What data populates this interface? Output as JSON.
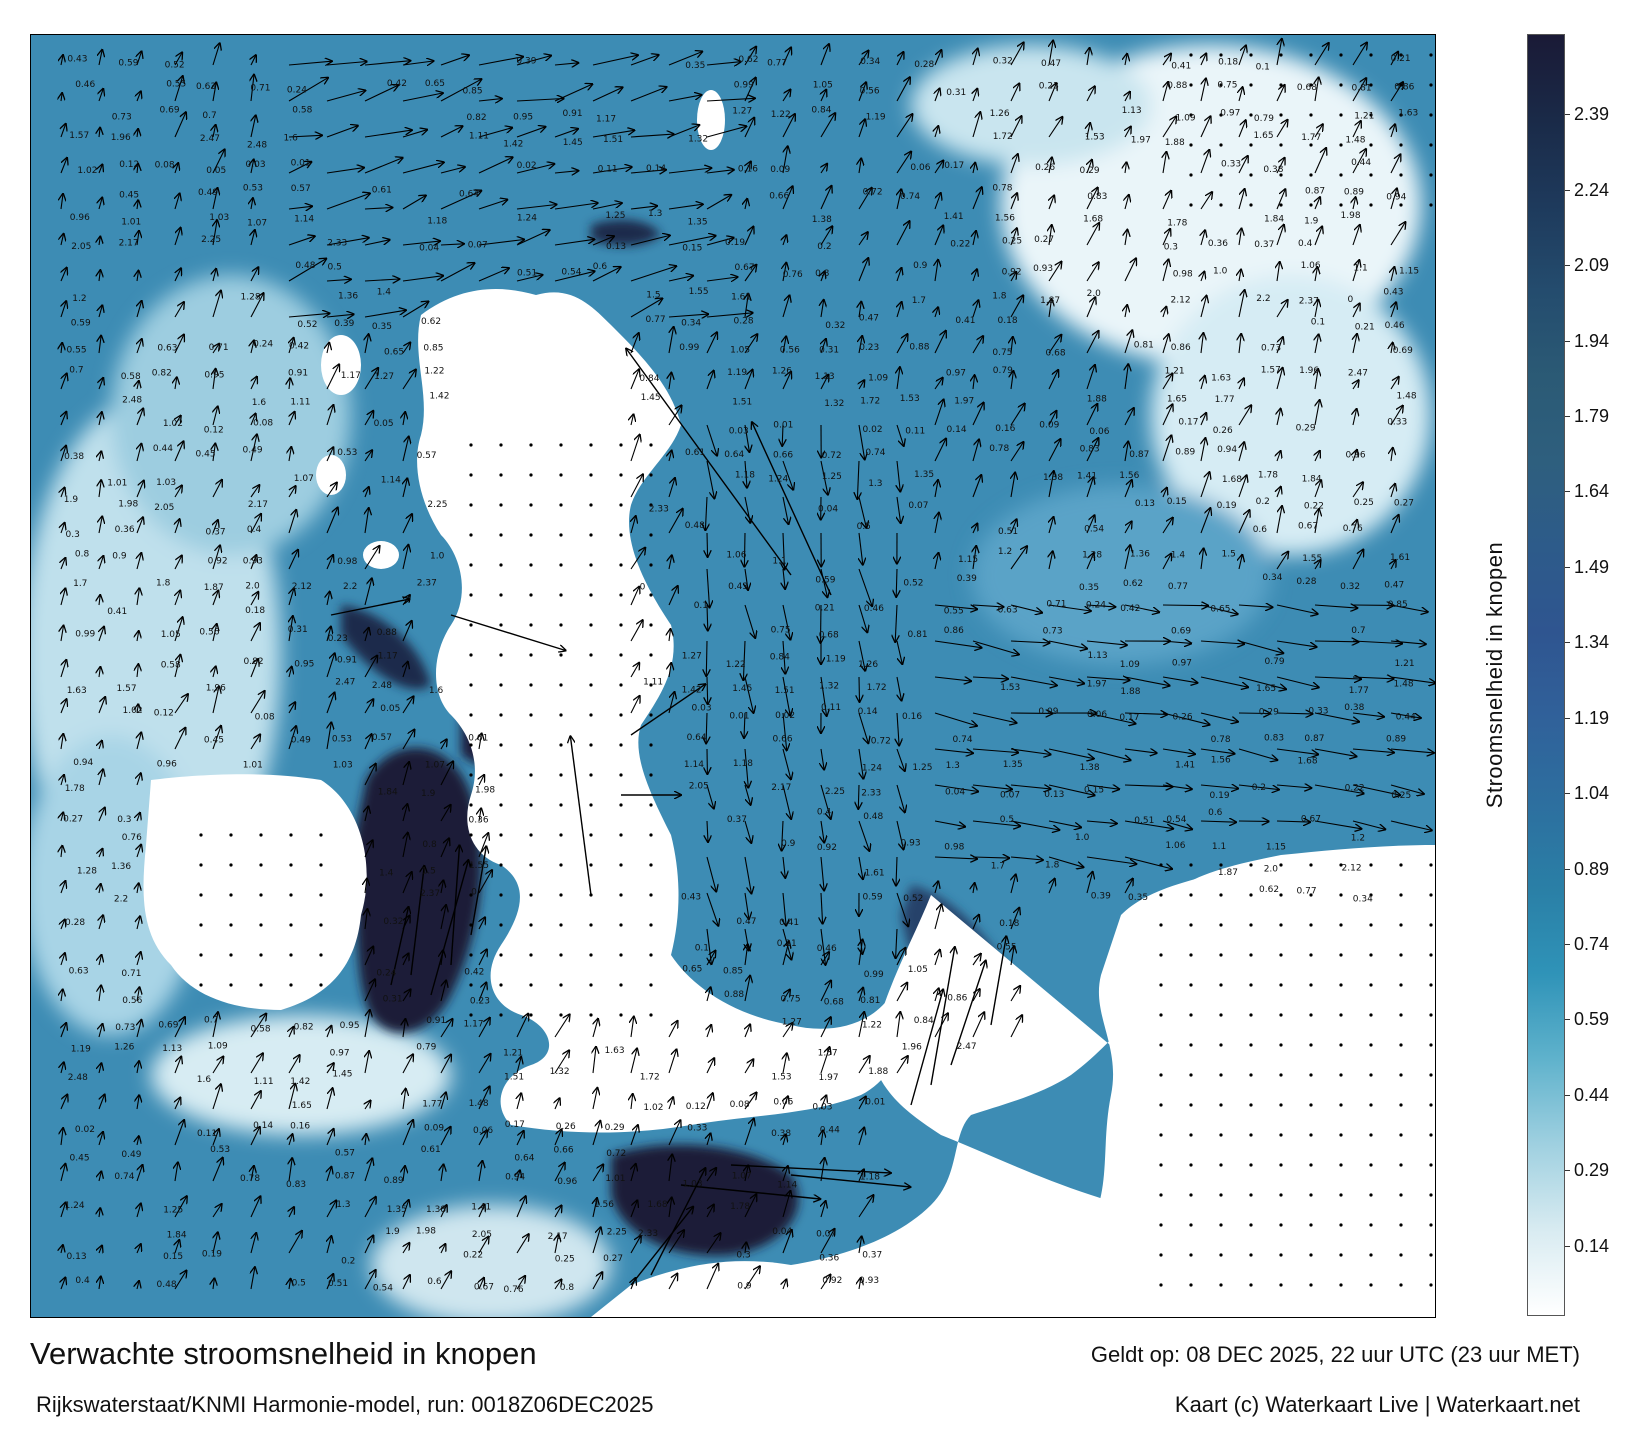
{
  "title": "Verwachte stroomsnelheid in knopen",
  "subtitle": "Rijkswaterstaat/KNMI Harmonie-model, run: 0018Z06DEC2025",
  "valid_time": "Geldt op: 08 DEC 2025, 22 uur UTC (23 uur MET)",
  "credit": "Kaart (c) Waterkaart Live | Waterkaart.net",
  "colorbar": {
    "label": "Stroomsnelheid in knopen",
    "ticks": [
      "2.39",
      "2.24",
      "2.09",
      "1.94",
      "1.79",
      "1.64",
      "1.49",
      "1.34",
      "1.19",
      "1.04",
      "0.89",
      "0.74",
      "0.59",
      "0.44",
      "0.29",
      "0.14"
    ],
    "tick_values": [
      2.39,
      2.24,
      2.09,
      1.94,
      1.79,
      1.64,
      1.49,
      1.34,
      1.19,
      1.04,
      0.89,
      0.74,
      0.59,
      0.44,
      0.29,
      0.14
    ],
    "range": [
      0.0,
      2.55
    ],
    "colors": [
      "#ffffff",
      "#d8ebf1",
      "#9fd0e0",
      "#5fb2cc",
      "#2f93b8",
      "#2a7fa6",
      "#2d6f9f",
      "#30619a",
      "#2f5590",
      "#2d5b8a",
      "#2e5f7e",
      "#2b5a75",
      "#244c6e",
      "#1e3a5c",
      "#1a2a48",
      "#1a1a36"
    ]
  },
  "map": {
    "land_color": "#ffffff",
    "sea_mid_color": "#3d8cb4",
    "sea_deep_color": "#1c1c38",
    "arrow_color": "#000000",
    "labels": [
      {
        "text": "0.43",
        "v": 0.43
      },
      {
        "text": "0.59",
        "v": 0.59
      },
      {
        "text": "0.52",
        "v": 0.52
      },
      {
        "text": "0.39",
        "v": 0.39
      },
      {
        "text": "0.35",
        "v": 0.35
      },
      {
        "text": "0.62",
        "v": 0.62
      },
      {
        "text": "0.77",
        "v": 0.77
      },
      {
        "text": "0.34",
        "v": 0.34
      },
      {
        "text": "0.28",
        "v": 0.28
      },
      {
        "text": "0.32",
        "v": 0.32
      },
      {
        "text": "0.47",
        "v": 0.47
      },
      {
        "text": "0.41",
        "v": 0.41
      },
      {
        "text": "0.18",
        "v": 0.18
      },
      {
        "text": "0.1",
        "v": 0.1
      },
      {
        "text": "0.21",
        "v": 0.21
      },
      {
        "text": "0.46",
        "v": 0.46
      },
      {
        "text": "0.55",
        "v": 0.55
      },
      {
        "text": "0.63",
        "v": 0.63
      },
      {
        "text": "0.71",
        "v": 0.71
      },
      {
        "text": "0.24",
        "v": 0.24
      },
      {
        "text": "0.42",
        "v": 0.42
      },
      {
        "text": "0.65",
        "v": 0.65
      },
      {
        "text": "0.85",
        "v": 0.85
      },
      {
        "text": "0.99",
        "v": 0.99
      },
      {
        "text": "1.05",
        "v": 1.05
      },
      {
        "text": "0.56",
        "v": 0.56
      },
      {
        "text": "0.31",
        "v": 0.31
      },
      {
        "text": "0.23",
        "v": 0.23
      },
      {
        "text": "0.88",
        "v": 0.88
      },
      {
        "text": "0.75",
        "v": 0.75
      },
      {
        "text": "0.68",
        "v": 0.68
      },
      {
        "text": "0.81",
        "v": 0.81
      },
      {
        "text": "0.86",
        "v": 0.86
      },
      {
        "text": "0.73",
        "v": 0.73
      },
      {
        "text": "0.69",
        "v": 0.69
      },
      {
        "text": "0.7",
        "v": 0.7
      },
      {
        "text": "0.58",
        "v": 0.58
      },
      {
        "text": "0.82",
        "v": 0.82
      },
      {
        "text": "0.95",
        "v": 0.95
      },
      {
        "text": "0.91",
        "v": 0.91
      },
      {
        "text": "1.17",
        "v": 1.17
      },
      {
        "text": "1.27",
        "v": 1.27
      },
      {
        "text": "1.22",
        "v": 1.22
      },
      {
        "text": "0.84",
        "v": 0.84
      },
      {
        "text": "1.19",
        "v": 1.19
      },
      {
        "text": "1.26",
        "v": 1.26
      },
      {
        "text": "1.13",
        "v": 1.13
      },
      {
        "text": "1.09",
        "v": 1.09
      },
      {
        "text": "0.97",
        "v": 0.97
      },
      {
        "text": "0.79",
        "v": 0.79
      },
      {
        "text": "1.21",
        "v": 1.21
      },
      {
        "text": "1.63",
        "v": 1.63
      },
      {
        "text": "1.57",
        "v": 1.57
      },
      {
        "text": "1.96",
        "v": 1.96
      },
      {
        "text": "2.47",
        "v": 2.47
      },
      {
        "text": "2.48",
        "v": 2.48
      },
      {
        "text": "1.6",
        "v": 1.6
      },
      {
        "text": "1.11",
        "v": 1.11
      },
      {
        "text": "1.42",
        "v": 1.42
      },
      {
        "text": "1.45",
        "v": 1.45
      },
      {
        "text": "1.51",
        "v": 1.51
      },
      {
        "text": "1.32",
        "v": 1.32
      },
      {
        "text": "1.72",
        "v": 1.72
      },
      {
        "text": "1.53",
        "v": 1.53
      },
      {
        "text": "1.97",
        "v": 1.97
      },
      {
        "text": "1.88",
        "v": 1.88
      },
      {
        "text": "1.65",
        "v": 1.65
      },
      {
        "text": "1.77",
        "v": 1.77
      },
      {
        "text": "1.48",
        "v": 1.48
      },
      {
        "text": "1.02",
        "v": 1.02
      },
      {
        "text": "0.12",
        "v": 0.12
      },
      {
        "text": "0.08",
        "v": 0.08
      },
      {
        "text": "0.05",
        "v": 0.05
      },
      {
        "text": "0.03",
        "v": 0.03
      },
      {
        "text": "0.01",
        "v": 0.01
      },
      {
        "text": "0.02",
        "v": 0.02
      },
      {
        "text": "0.11",
        "v": 0.11
      },
      {
        "text": "0.14",
        "v": 0.14
      },
      {
        "text": "0.16",
        "v": 0.16
      },
      {
        "text": "0.09",
        "v": 0.09
      },
      {
        "text": "0.06",
        "v": 0.06
      },
      {
        "text": "0.17",
        "v": 0.17
      },
      {
        "text": "0.26",
        "v": 0.26
      },
      {
        "text": "0.29",
        "v": 0.29
      },
      {
        "text": "0.33",
        "v": 0.33
      },
      {
        "text": "0.38",
        "v": 0.38
      },
      {
        "text": "0.44",
        "v": 0.44
      },
      {
        "text": "0.45",
        "v": 0.45
      },
      {
        "text": "0.49",
        "v": 0.49
      },
      {
        "text": "0.53",
        "v": 0.53
      },
      {
        "text": "0.57",
        "v": 0.57
      },
      {
        "text": "0.61",
        "v": 0.61
      },
      {
        "text": "0.64",
        "v": 0.64
      },
      {
        "text": "0.66",
        "v": 0.66
      },
      {
        "text": "0.72",
        "v": 0.72
      },
      {
        "text": "0.74",
        "v": 0.74
      },
      {
        "text": "0.78",
        "v": 0.78
      },
      {
        "text": "0.83",
        "v": 0.83
      },
      {
        "text": "0.87",
        "v": 0.87
      },
      {
        "text": "0.89",
        "v": 0.89
      },
      {
        "text": "0.94",
        "v": 0.94
      },
      {
        "text": "0.96",
        "v": 0.96
      },
      {
        "text": "1.01",
        "v": 1.01
      },
      {
        "text": "1.03",
        "v": 1.03
      },
      {
        "text": "1.07",
        "v": 1.07
      },
      {
        "text": "1.14",
        "v": 1.14
      },
      {
        "text": "1.18",
        "v": 1.18
      },
      {
        "text": "1.24",
        "v": 1.24
      },
      {
        "text": "1.25",
        "v": 1.25
      },
      {
        "text": "1.3",
        "v": 1.3
      },
      {
        "text": "1.35",
        "v": 1.35
      },
      {
        "text": "1.38",
        "v": 1.38
      },
      {
        "text": "1.41",
        "v": 1.41
      },
      {
        "text": "1.56",
        "v": 1.56
      },
      {
        "text": "1.68",
        "v": 1.68
      },
      {
        "text": "1.78",
        "v": 1.78
      },
      {
        "text": "1.84",
        "v": 1.84
      },
      {
        "text": "1.9",
        "v": 1.9
      },
      {
        "text": "1.98",
        "v": 1.98
      },
      {
        "text": "2.05",
        "v": 2.05
      },
      {
        "text": "2.17",
        "v": 2.17
      },
      {
        "text": "2.25",
        "v": 2.25
      },
      {
        "text": "2.33",
        "v": 2.33
      },
      {
        "text": "0.04",
        "v": 0.04
      },
      {
        "text": "0.07",
        "v": 0.07
      },
      {
        "text": "0.13",
        "v": 0.13
      },
      {
        "text": "0.15",
        "v": 0.15
      },
      {
        "text": "0.19",
        "v": 0.19
      },
      {
        "text": "0.2",
        "v": 0.2
      },
      {
        "text": "0.22",
        "v": 0.22
      },
      {
        "text": "0.25",
        "v": 0.25
      },
      {
        "text": "0.27",
        "v": 0.27
      },
      {
        "text": "0.3",
        "v": 0.3
      },
      {
        "text": "0.36",
        "v": 0.36
      },
      {
        "text": "0.37",
        "v": 0.37
      },
      {
        "text": "0.4",
        "v": 0.4
      },
      {
        "text": "0.48",
        "v": 0.48
      },
      {
        "text": "0.5",
        "v": 0.5
      },
      {
        "text": "0.51",
        "v": 0.51
      },
      {
        "text": "0.54",
        "v": 0.54
      },
      {
        "text": "0.6",
        "v": 0.6
      },
      {
        "text": "0.67",
        "v": 0.67
      },
      {
        "text": "0.76",
        "v": 0.76
      },
      {
        "text": "0.8",
        "v": 0.8
      },
      {
        "text": "0.9",
        "v": 0.9
      },
      {
        "text": "0.92",
        "v": 0.92
      },
      {
        "text": "0.93",
        "v": 0.93
      },
      {
        "text": "0.98",
        "v": 0.98
      },
      {
        "text": "1.0",
        "v": 1.0
      },
      {
        "text": "1.06",
        "v": 1.06
      },
      {
        "text": "1.1",
        "v": 1.1
      },
      {
        "text": "1.15",
        "v": 1.15
      },
      {
        "text": "1.2",
        "v": 1.2
      },
      {
        "text": "1.28",
        "v": 1.28
      },
      {
        "text": "1.36",
        "v": 1.36
      },
      {
        "text": "1.4",
        "v": 1.4
      },
      {
        "text": "1.5",
        "v": 1.5
      },
      {
        "text": "1.55",
        "v": 1.55
      },
      {
        "text": "1.61",
        "v": 1.61
      },
      {
        "text": "1.7",
        "v": 1.7
      },
      {
        "text": "1.8",
        "v": 1.8
      },
      {
        "text": "1.87",
        "v": 1.87
      },
      {
        "text": "2.0",
        "v": 2.0
      },
      {
        "text": "2.12",
        "v": 2.12
      },
      {
        "text": "2.2",
        "v": 2.2
      },
      {
        "text": "2.37",
        "v": 2.37
      },
      {
        "text": "0",
        "v": 0.0
      }
    ]
  }
}
